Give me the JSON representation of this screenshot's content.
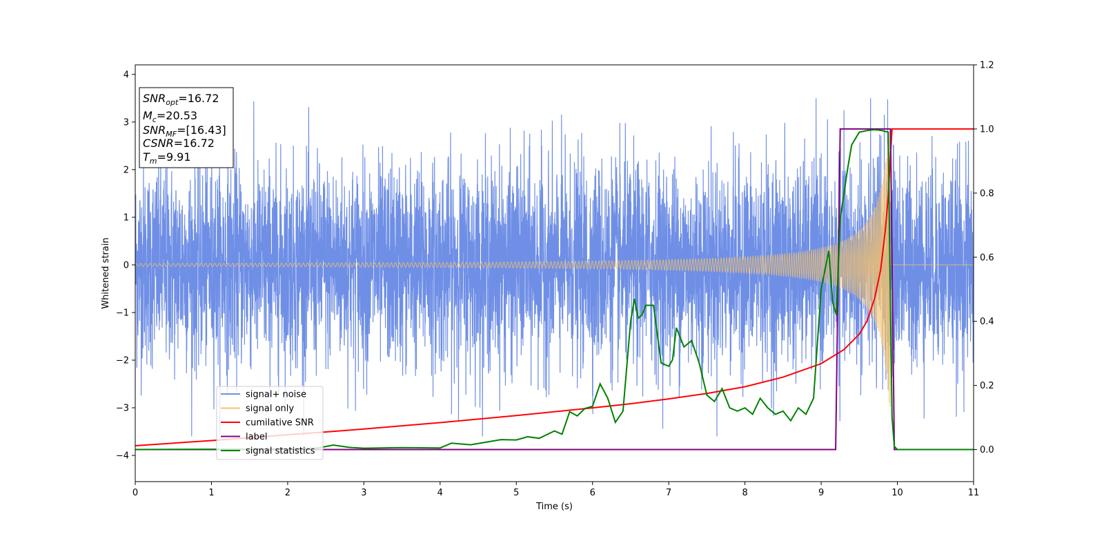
{
  "chart_data": {
    "type": "line",
    "xlabel": "Time (s)",
    "ylabel": "Whitened strain",
    "xlim": [
      0,
      11
    ],
    "ylim": [
      -4.55,
      4.2
    ],
    "y2lim": [
      -0.1,
      1.2
    ],
    "xticks": [
      0,
      1,
      2,
      3,
      4,
      5,
      6,
      7,
      8,
      9,
      10,
      11
    ],
    "yticks": [
      -4,
      -3,
      -2,
      -1,
      0,
      1,
      2,
      3,
      4
    ],
    "y2ticks": [
      0.0,
      0.2,
      0.4,
      0.6,
      0.8,
      1.0,
      1.2
    ],
    "grid": false,
    "legend_position": "lower-left",
    "info_box": {
      "snr_opt": {
        "sym": "SNR",
        "sub": "opt",
        "val": "=16.72"
      },
      "mc": {
        "sym": "M",
        "sub": "c",
        "val": "=20.53"
      },
      "snr_mf": {
        "sym": "SNR",
        "sub": "MF",
        "val": "=[16.43]"
      },
      "csnr": {
        "sym": "CSNR",
        "val": "=16.72"
      },
      "tm": {
        "sym": "T",
        "sub": "m",
        "val": "=9.91"
      }
    },
    "series": [
      {
        "name": "signal+ noise",
        "color": "#6f8fe6",
        "axis": "left",
        "description": "whitened noise with embedded chirp, roughly -3.5 to 3.5 range",
        "noise_amplitude_range": [
          -3.6,
          3.5
        ]
      },
      {
        "name": "signal only",
        "color": "#f5c26b",
        "axis": "left",
        "chirp": {
          "t_start": 0,
          "t_merge": 9.91,
          "amp_start": 0.03,
          "amp_peak": 3.0
        }
      },
      {
        "name": "cumilative SNR",
        "color": "#ff0000",
        "axis": "right",
        "points": [
          [
            0,
            0.012
          ],
          [
            1,
            0.028
          ],
          [
            2,
            0.046
          ],
          [
            3,
            0.064
          ],
          [
            4,
            0.084
          ],
          [
            5,
            0.106
          ],
          [
            6,
            0.13
          ],
          [
            6.5,
            0.143
          ],
          [
            7,
            0.158
          ],
          [
            7.5,
            0.175
          ],
          [
            8,
            0.196
          ],
          [
            8.5,
            0.226
          ],
          [
            9,
            0.268
          ],
          [
            9.3,
            0.312
          ],
          [
            9.5,
            0.36
          ],
          [
            9.6,
            0.4
          ],
          [
            9.7,
            0.47
          ],
          [
            9.78,
            0.56
          ],
          [
            9.84,
            0.68
          ],
          [
            9.88,
            0.79
          ],
          [
            9.91,
            0.92
          ],
          [
            9.93,
            1.0
          ],
          [
            11,
            1.0
          ]
        ]
      },
      {
        "name": "label",
        "color": "#800080",
        "axis": "right",
        "points": [
          [
            0,
            0
          ],
          [
            9.19,
            0
          ],
          [
            9.25,
            1
          ],
          [
            9.91,
            1
          ],
          [
            9.96,
            0
          ],
          [
            11,
            0
          ]
        ]
      },
      {
        "name": "signal statistics",
        "color": "#008000",
        "axis": "right",
        "points": [
          [
            0,
            0
          ],
          [
            1,
            0.001
          ],
          [
            2,
            0.002
          ],
          [
            2.4,
            0.005
          ],
          [
            2.6,
            0.014
          ],
          [
            2.8,
            0.007
          ],
          [
            3,
            0.004
          ],
          [
            3.5,
            0.006
          ],
          [
            4,
            0.005
          ],
          [
            4.15,
            0.02
          ],
          [
            4.4,
            0.015
          ],
          [
            4.6,
            0.023
          ],
          [
            4.8,
            0.031
          ],
          [
            5,
            0.03
          ],
          [
            5.15,
            0.04
          ],
          [
            5.3,
            0.035
          ],
          [
            5.5,
            0.058
          ],
          [
            5.6,
            0.048
          ],
          [
            5.7,
            0.118
          ],
          [
            5.8,
            0.105
          ],
          [
            5.9,
            0.128
          ],
          [
            6,
            0.135
          ],
          [
            6.1,
            0.205
          ],
          [
            6.2,
            0.16
          ],
          [
            6.3,
            0.085
          ],
          [
            6.4,
            0.12
          ],
          [
            6.5,
            0.4
          ],
          [
            6.55,
            0.47
          ],
          [
            6.6,
            0.41
          ],
          [
            6.65,
            0.42
          ],
          [
            6.7,
            0.45
          ],
          [
            6.8,
            0.45
          ],
          [
            6.9,
            0.27
          ],
          [
            7.0,
            0.26
          ],
          [
            7.05,
            0.28
          ],
          [
            7.1,
            0.38
          ],
          [
            7.2,
            0.32
          ],
          [
            7.3,
            0.34
          ],
          [
            7.4,
            0.27
          ],
          [
            7.5,
            0.17
          ],
          [
            7.6,
            0.15
          ],
          [
            7.7,
            0.19
          ],
          [
            7.8,
            0.13
          ],
          [
            7.9,
            0.12
          ],
          [
            8.0,
            0.13
          ],
          [
            8.1,
            0.11
          ],
          [
            8.2,
            0.16
          ],
          [
            8.3,
            0.13
          ],
          [
            8.4,
            0.11
          ],
          [
            8.5,
            0.12
          ],
          [
            8.6,
            0.09
          ],
          [
            8.7,
            0.13
          ],
          [
            8.8,
            0.11
          ],
          [
            8.9,
            0.16
          ],
          [
            9.0,
            0.5
          ],
          [
            9.1,
            0.62
          ],
          [
            9.15,
            0.46
          ],
          [
            9.2,
            0.42
          ],
          [
            9.25,
            0.72
          ],
          [
            9.3,
            0.8
          ],
          [
            9.35,
            0.88
          ],
          [
            9.4,
            0.95
          ],
          [
            9.5,
            0.99
          ],
          [
            9.6,
            0.995
          ],
          [
            9.7,
            0.998
          ],
          [
            9.8,
            0.995
          ],
          [
            9.88,
            0.99
          ],
          [
            9.9,
            0.6
          ],
          [
            9.93,
            0.1
          ],
          [
            9.96,
            0.01
          ],
          [
            10,
            0
          ],
          [
            11,
            0
          ]
        ]
      }
    ]
  }
}
